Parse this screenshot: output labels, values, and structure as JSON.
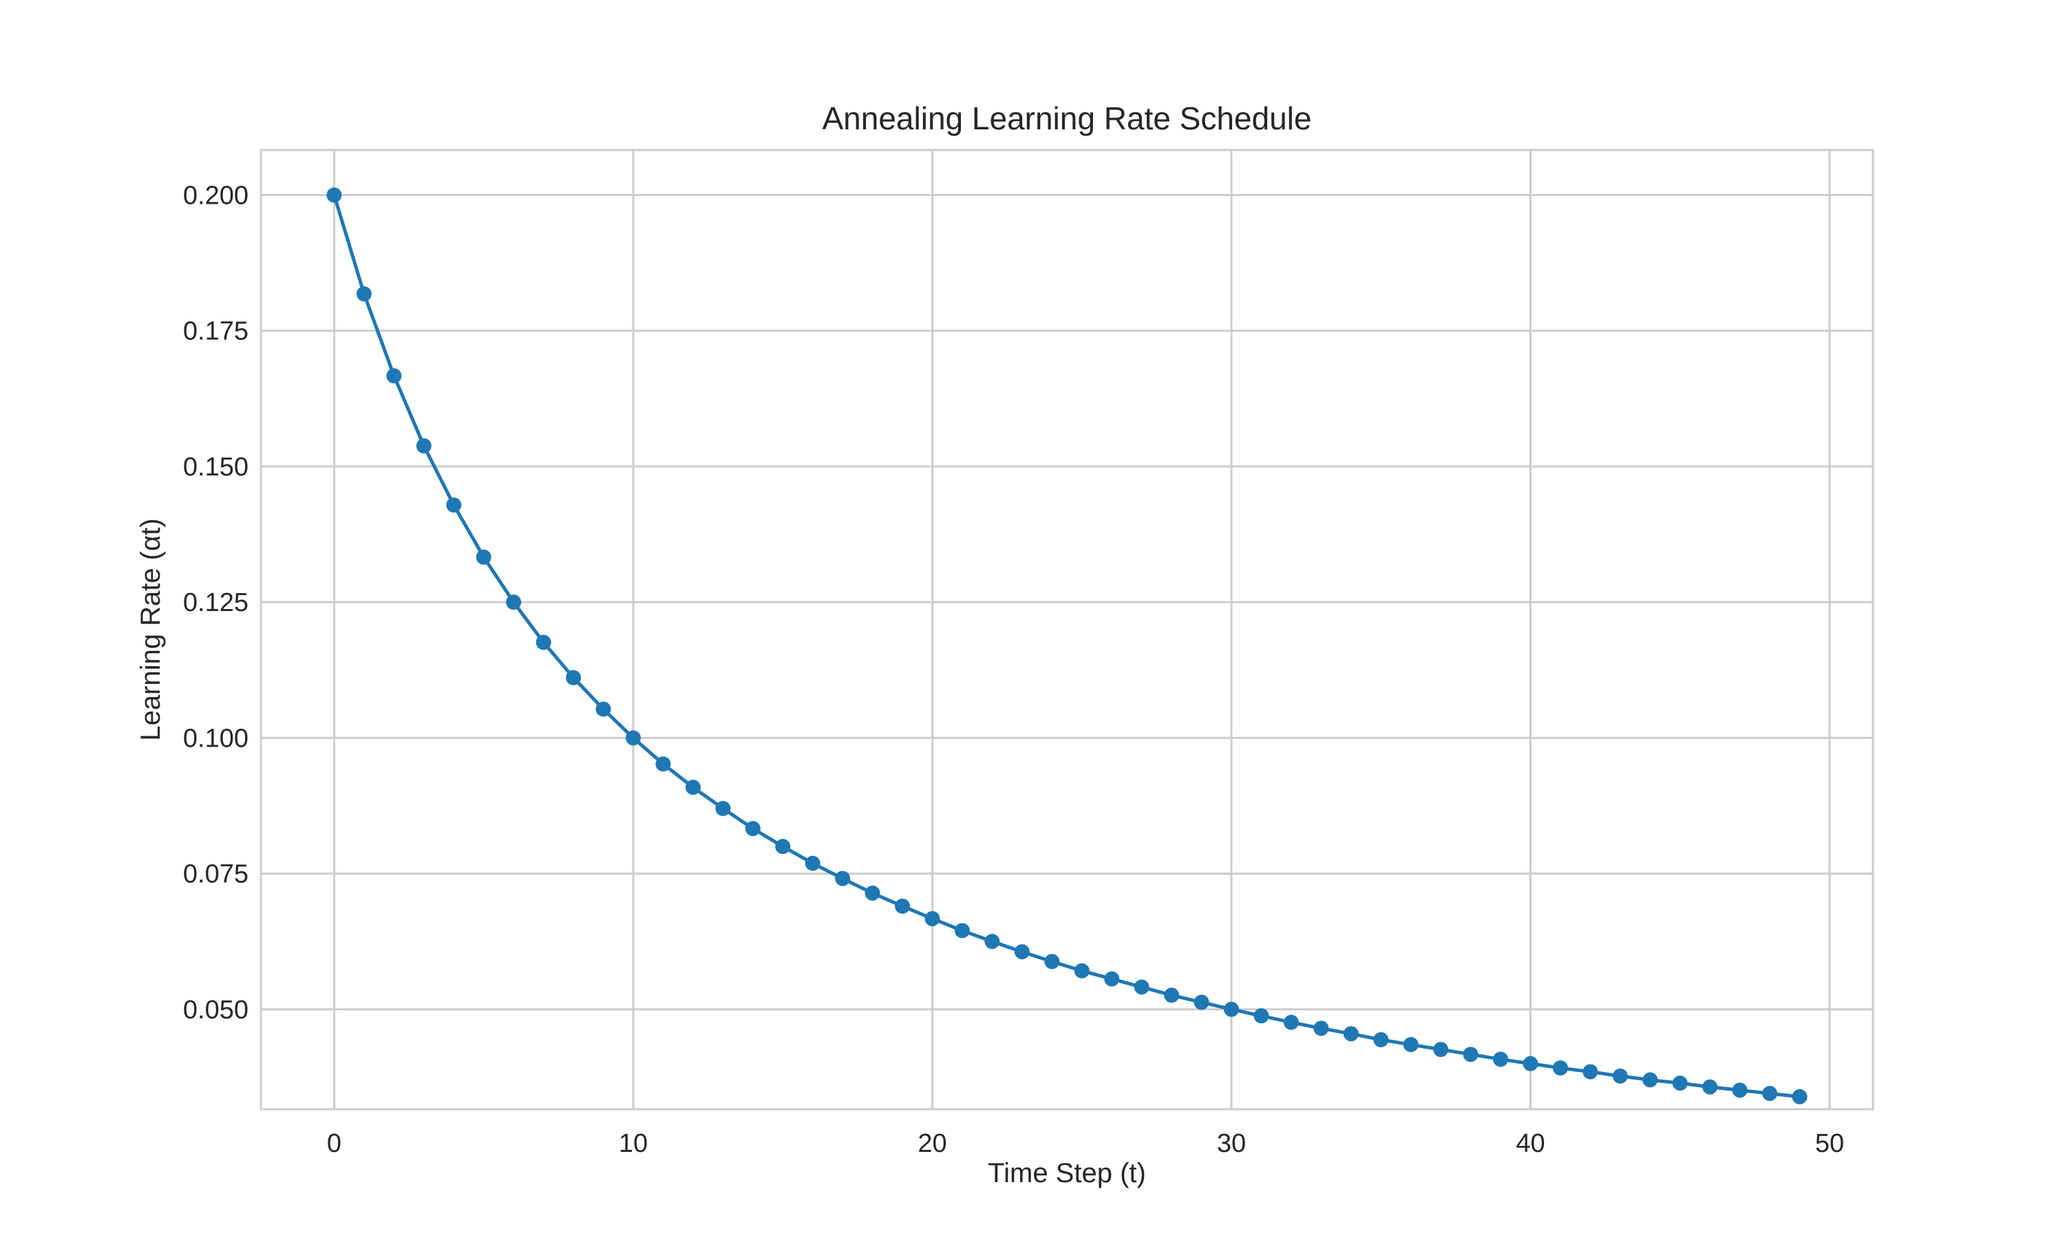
{
  "chart_data": {
    "type": "line",
    "title": "Annealing Learning Rate Schedule",
    "xlabel": "Time Step (t)",
    "ylabel": "Learning Rate (αt)",
    "xlim": [
      -2.45,
      51.45
    ],
    "ylim": [
      0.0316,
      0.2083
    ],
    "xticks": [
      0,
      10,
      20,
      30,
      40,
      50
    ],
    "xtick_labels": [
      "0",
      "10",
      "20",
      "30",
      "40",
      "50"
    ],
    "yticks": [
      0.05,
      0.075,
      0.1,
      0.125,
      0.15,
      0.175,
      0.2
    ],
    "ytick_labels": [
      "0.050",
      "0.075",
      "0.100",
      "0.125",
      "0.150",
      "0.175",
      "0.200"
    ],
    "grid": true,
    "legend": "none",
    "series": [
      {
        "color": "#1f77b4",
        "marker": "circle",
        "x": [
          0,
          1,
          2,
          3,
          4,
          5,
          6,
          7,
          8,
          9,
          10,
          11,
          12,
          13,
          14,
          15,
          16,
          17,
          18,
          19,
          20,
          21,
          22,
          23,
          24,
          25,
          26,
          27,
          28,
          29,
          30,
          31,
          32,
          33,
          34,
          35,
          36,
          37,
          38,
          39,
          40,
          41,
          42,
          43,
          44,
          45,
          46,
          47,
          48,
          49
        ],
        "y": [
          0.2,
          0.1818,
          0.1667,
          0.1538,
          0.1429,
          0.1333,
          0.125,
          0.1176,
          0.1111,
          0.1053,
          0.1,
          0.0952,
          0.0909,
          0.087,
          0.0833,
          0.08,
          0.0769,
          0.0741,
          0.0714,
          0.069,
          0.0667,
          0.0645,
          0.0625,
          0.0606,
          0.0588,
          0.0571,
          0.0556,
          0.0541,
          0.0526,
          0.0513,
          0.05,
          0.0488,
          0.0476,
          0.0465,
          0.0455,
          0.0444,
          0.0435,
          0.0426,
          0.0417,
          0.0408,
          0.04,
          0.0392,
          0.0385,
          0.0377,
          0.037,
          0.0364,
          0.0357,
          0.0351,
          0.0345,
          0.0339
        ]
      }
    ]
  },
  "colors": {
    "line": "#1f77b4",
    "grid": "#cccccc",
    "frame": "#cccccc",
    "text": "#262626"
  }
}
